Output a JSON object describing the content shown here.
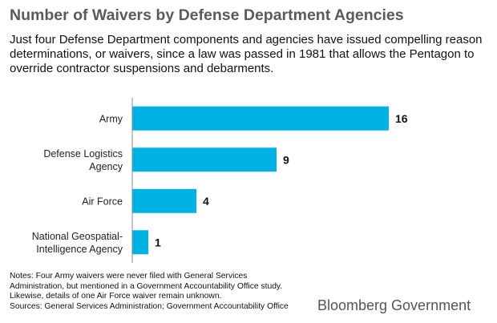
{
  "title": "Number of Waivers by Defense Department Agencies",
  "subtitle": "Just four Defense Department components and agencies have issued compelling reason determinations, or waivers, since a law was passed in 1981 that allows the Pentagon to override contractor suspensions and debarments.",
  "notes": [
    "Notes: Four Army waivers were never filed with General Services",
    "Administration, but mentioned in a Government Accountability Office study.",
    "Likewise, details of one Air Force waiver remain unknown.",
    "Sources: General Services Administration; Government Accountability Office"
  ],
  "brand": "Bloomberg Government",
  "colors": {
    "bar": "#00b2e3",
    "title": "#5a5a5a",
    "axis": "#888888"
  },
  "chart_data": {
    "type": "bar",
    "orientation": "horizontal",
    "categories": [
      [
        "Army"
      ],
      [
        "Defense Logistics",
        "Agency"
      ],
      [
        "Air Force"
      ],
      [
        "National Geospatial-",
        "Intelligence Agency"
      ]
    ],
    "values": [
      16,
      9,
      4,
      1
    ],
    "xlim": [
      0,
      16
    ],
    "data_labels": true,
    "grid": false,
    "legend": "none"
  }
}
